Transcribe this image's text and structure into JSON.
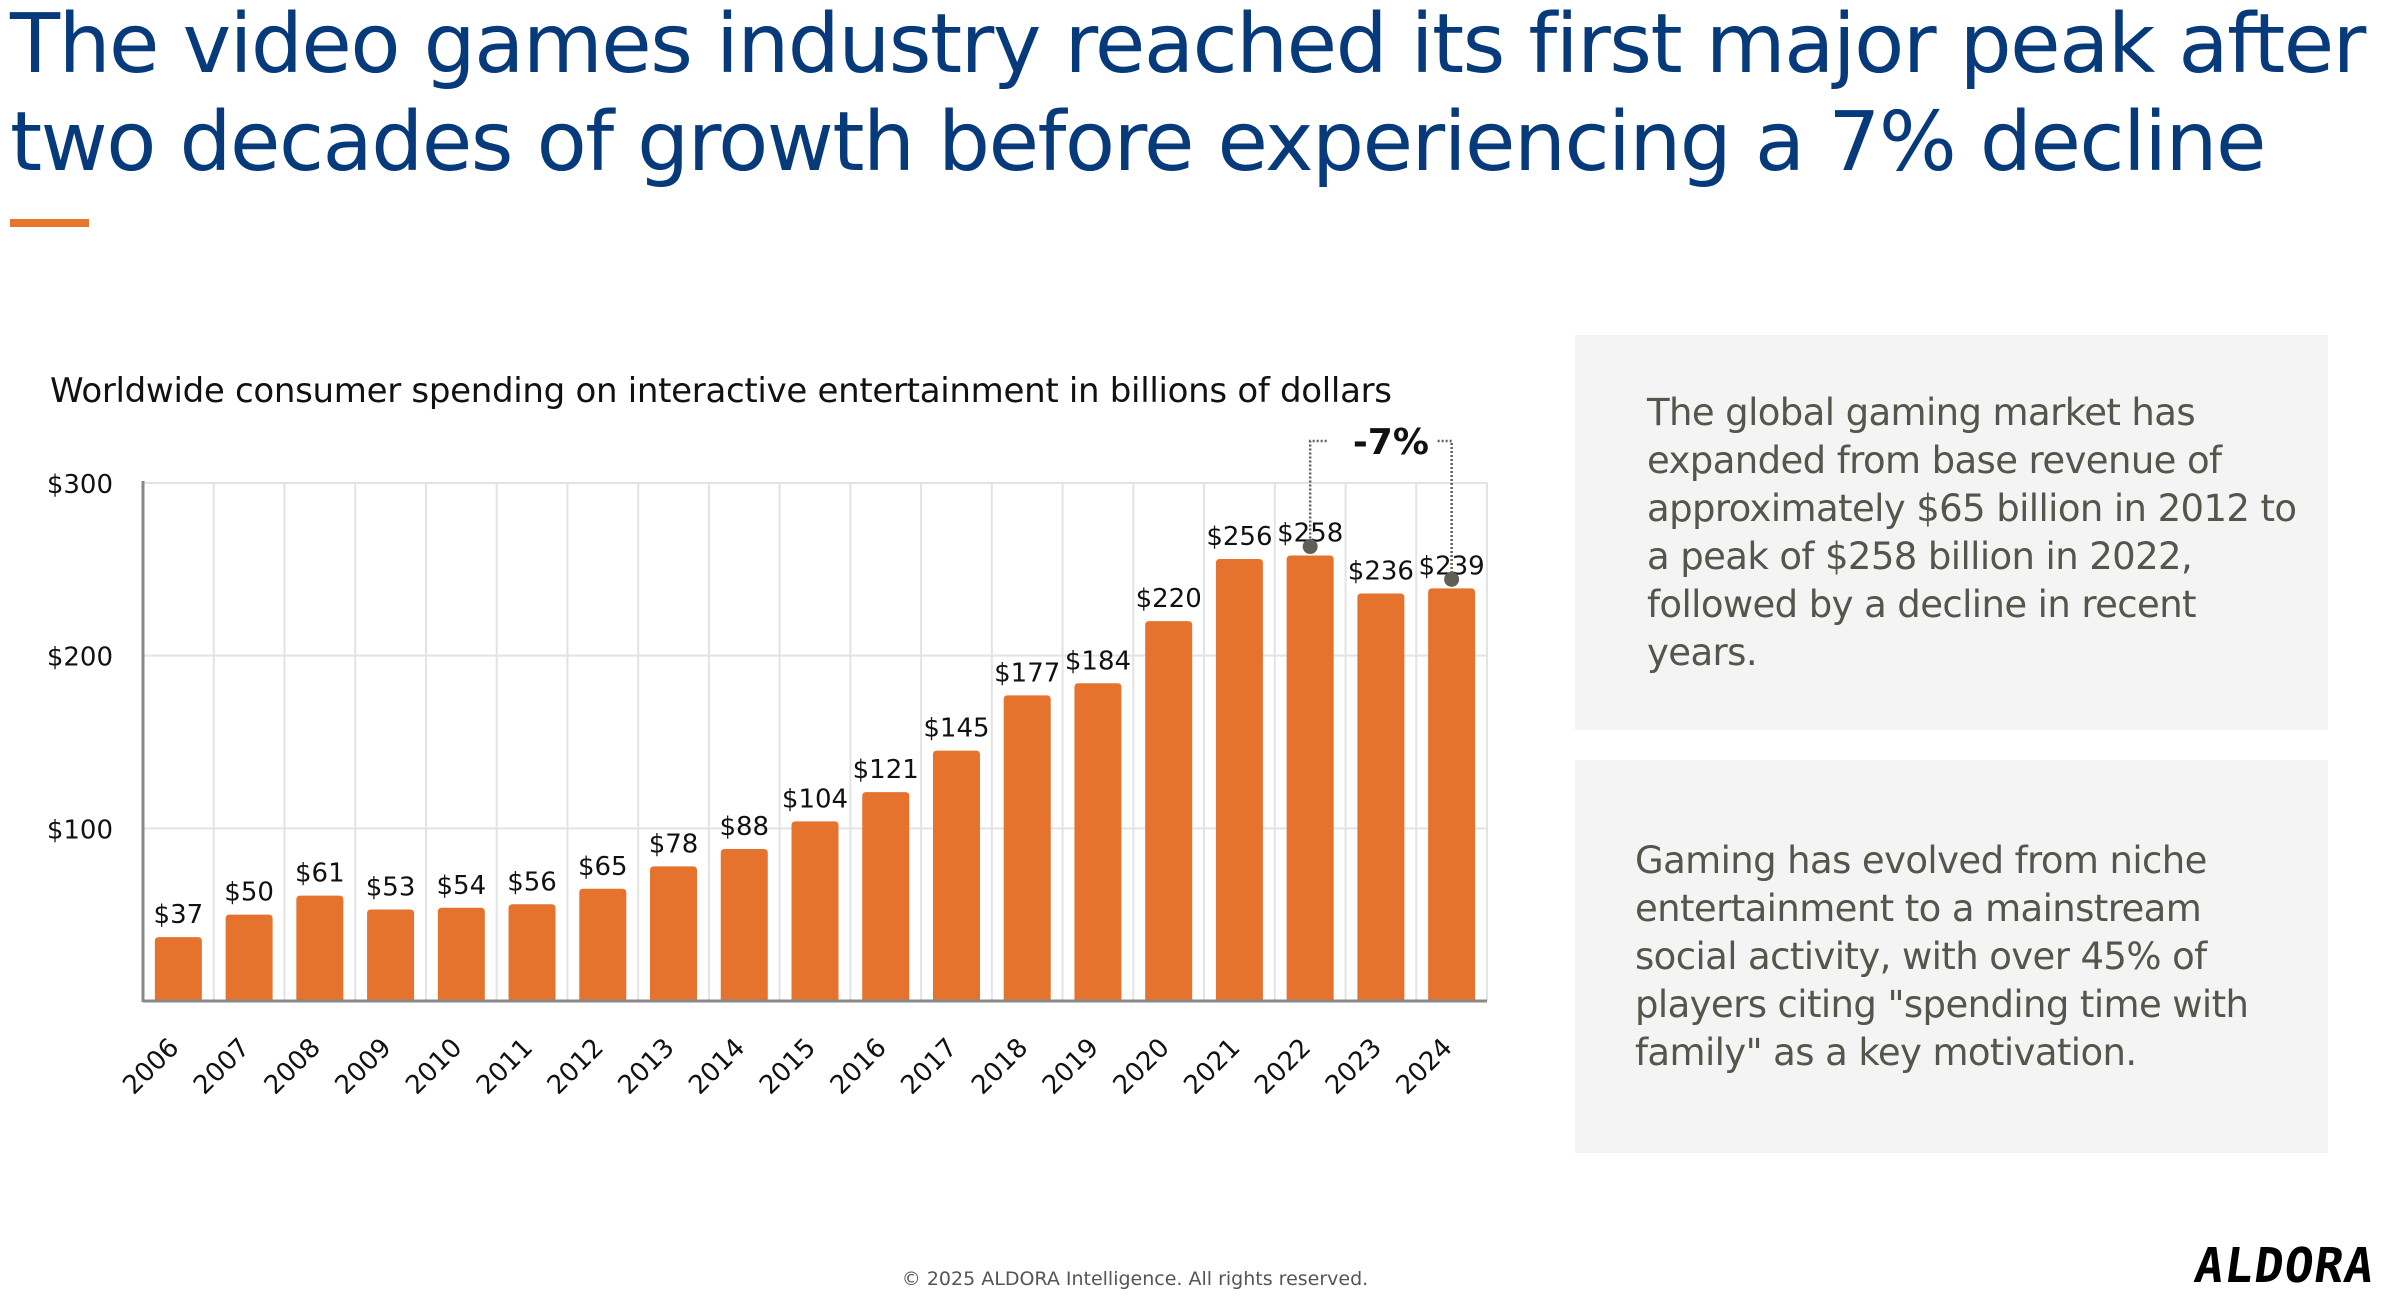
{
  "slide": {
    "title_lines": [
      "The video games industry reached its first major peak after",
      "two decades of growth before experiencing a 7% decline"
    ],
    "accent_color": "#e8752e",
    "title_color": "#073a7b"
  },
  "chart_data": {
    "type": "bar",
    "title": "Worldwide consumer spending on interactive entertainment in billions of dollars",
    "xlabel": "",
    "ylabel": "",
    "categories": [
      "2006",
      "2007",
      "2008",
      "2009",
      "2010",
      "2011",
      "2012",
      "2013",
      "2014",
      "2015",
      "2016",
      "2017",
      "2018",
      "2019",
      "2020",
      "2021",
      "2022",
      "2023",
      "2024"
    ],
    "values": [
      37,
      50,
      61,
      53,
      54,
      56,
      65,
      78,
      88,
      104,
      121,
      145,
      177,
      184,
      220,
      256,
      258,
      236,
      239
    ],
    "value_labels": [
      "$37",
      "$50",
      "$61",
      "$53",
      "$54",
      "$56",
      "$65",
      "$78",
      "$88",
      "$104",
      "$121",
      "$145",
      "$177",
      "$184",
      "$220",
      "$256",
      "$258",
      "$236",
      "$239"
    ],
    "ylim": [
      0,
      300
    ],
    "yticks": [
      100,
      200,
      300
    ],
    "ytick_labels": [
      "$100",
      "$200",
      "$300"
    ],
    "grid": true,
    "bar_color": "#e5732d",
    "annotation": {
      "label": "-7%",
      "from_category": "2022",
      "to_category": "2024",
      "marker_color": "#5f5f55"
    }
  },
  "info_boxes": [
    {
      "text": "The global gaming market has expanded from base revenue of approximately $65 billion in 2012 to a peak of $258 billion in 2022, followed by a decline in recent years."
    },
    {
      "text": "Gaming has evolved from niche entertainment to a mainstream social activity, with over 45% of players citing \"spending time with family\" as a key motivation."
    }
  ],
  "footer": {
    "copyright": "© 2025 ALDORA Intelligence. All rights reserved.",
    "logo_text": "ALDORA"
  }
}
